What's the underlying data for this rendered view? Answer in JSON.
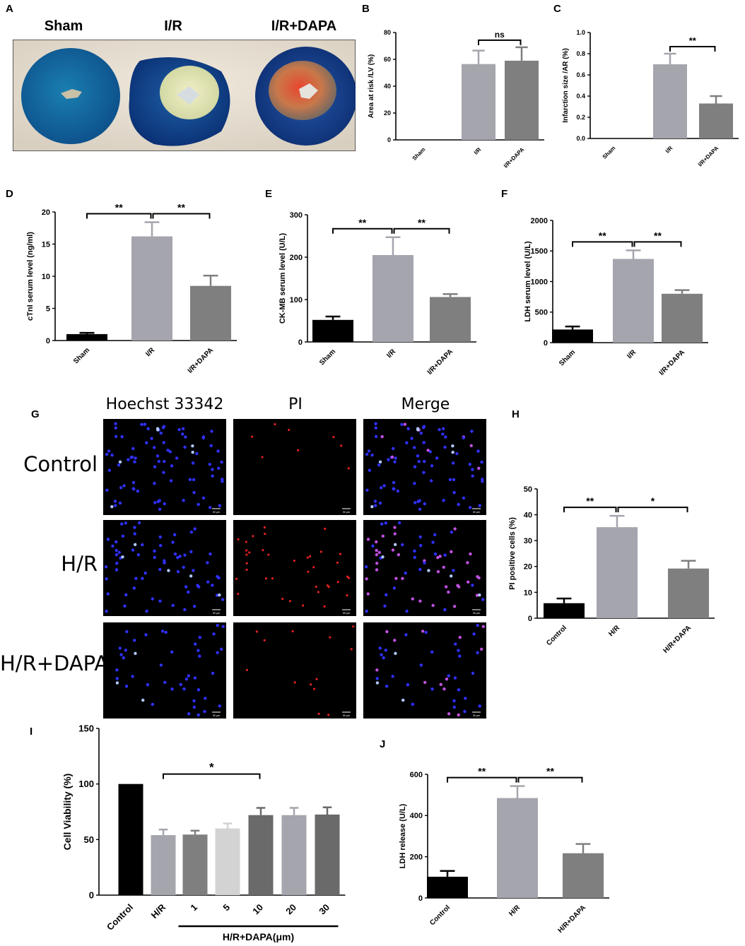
{
  "panel_letters": [
    "A",
    "B",
    "C",
    "D",
    "E",
    "F",
    "G",
    "H",
    "I",
    "J"
  ],
  "photo": {
    "labels": [
      "Sham",
      "I/R",
      "I/R+DAPA"
    ]
  },
  "micrographs": {
    "columns": [
      "Hoechst 33342",
      "PI",
      "Merge"
    ],
    "rows": [
      "Control",
      "H/R",
      "H/R+DAPA"
    ],
    "scale_bar": "50 μm"
  },
  "colors": {
    "black": "#000000",
    "light_gray": "#a5a5ae",
    "dark_gray": "#7f7f7f",
    "very_light_gray": "#d3d3d3",
    "mid_dark_gray": "#6a6a6a",
    "nuclei_blue": "#2a2aff",
    "pi_red": "#e02020"
  },
  "chart_data": [
    {
      "id": "B",
      "type": "bar",
      "categories": [
        "Sham",
        "I/R",
        "I/R+DAPA"
      ],
      "values": [
        0,
        56.5,
        59
      ],
      "errors": [
        0,
        10,
        10
      ],
      "colors": [
        "#000000",
        "#a5a5ae",
        "#7f7f7f"
      ],
      "ylabel": "Area at risk /LV (%)",
      "ylim": [
        0,
        80
      ],
      "yticks": [
        "0",
        "20",
        "40",
        "60",
        "80"
      ],
      "significance": [
        {
          "from": 1,
          "to": 2,
          "label": "ns"
        }
      ]
    },
    {
      "id": "C",
      "type": "bar",
      "categories": [
        "Sham",
        "I/R",
        "I/R+DAPA"
      ],
      "values": [
        0,
        0.7,
        0.33
      ],
      "errors": [
        0,
        0.1,
        0.07
      ],
      "colors": [
        "#000000",
        "#a5a5ae",
        "#7f7f7f"
      ],
      "ylabel": "Infarction size /AR (%)",
      "ylim": [
        0,
        1.0
      ],
      "yticks": [
        "0.0",
        "0.2",
        "0.4",
        "0.6",
        "0.8",
        "1.0"
      ],
      "significance": [
        {
          "from": 1,
          "to": 2,
          "label": "**"
        }
      ]
    },
    {
      "id": "D",
      "type": "bar",
      "categories": [
        "Sham",
        "I/R",
        "I/R+DAPA"
      ],
      "values": [
        1.0,
        16.2,
        8.5
      ],
      "errors": [
        0.2,
        2.2,
        1.6
      ],
      "colors": [
        "#000000",
        "#a5a5ae",
        "#7f7f7f"
      ],
      "ylabel": "cTnI serum level (ng/ml)",
      "ylim": [
        0,
        20
      ],
      "yticks": [
        "0",
        "5",
        "10",
        "15",
        "20"
      ],
      "significance": [
        {
          "from": 0,
          "to": 1,
          "label": "**"
        },
        {
          "from": 1,
          "to": 2,
          "label": "**"
        }
      ]
    },
    {
      "id": "E",
      "type": "bar",
      "categories": [
        "Sham",
        "I/R",
        "I/R+DAPA"
      ],
      "values": [
        52,
        205,
        106
      ],
      "errors": [
        8,
        42,
        7
      ],
      "colors": [
        "#000000",
        "#a5a5ae",
        "#7f7f7f"
      ],
      "ylabel": "CK-MB serum level (U/L)",
      "ylim": [
        0,
        300
      ],
      "yticks": [
        "0",
        "100",
        "200",
        "300"
      ],
      "significance": [
        {
          "from": 0,
          "to": 1,
          "label": "**"
        },
        {
          "from": 1,
          "to": 2,
          "label": "**"
        }
      ]
    },
    {
      "id": "F",
      "type": "bar",
      "categories": [
        "Sham",
        "I/R",
        "I/R+DAPA"
      ],
      "values": [
        215,
        1370,
        800
      ],
      "errors": [
        50,
        140,
        60
      ],
      "colors": [
        "#000000",
        "#a5a5ae",
        "#7f7f7f"
      ],
      "ylabel": "LDH serum level (U/L)",
      "ylim": [
        0,
        2000
      ],
      "yticks": [
        "0",
        "500",
        "1000",
        "1500",
        "2000"
      ],
      "significance": [
        {
          "from": 0,
          "to": 1,
          "label": "**"
        },
        {
          "from": 1,
          "to": 2,
          "label": "**"
        }
      ]
    },
    {
      "id": "H",
      "type": "bar",
      "categories": [
        "Control",
        "H/R",
        "H/R+DAPA"
      ],
      "values": [
        5.8,
        35.2,
        19.2
      ],
      "errors": [
        1.8,
        4.4,
        3.0
      ],
      "colors": [
        "#000000",
        "#a5a5ae",
        "#7f7f7f"
      ],
      "ylabel": "PI positive cells (%)",
      "ylim": [
        0,
        50
      ],
      "yticks": [
        "0",
        "10",
        "20",
        "30",
        "40",
        "50"
      ],
      "significance": [
        {
          "from": 0,
          "to": 1,
          "label": "**"
        },
        {
          "from": 1,
          "to": 2,
          "label": "*"
        }
      ]
    },
    {
      "id": "I",
      "type": "bar",
      "categories": [
        "Control",
        "H/R",
        "1",
        "5",
        "10",
        "20",
        "30"
      ],
      "values": [
        100,
        54,
        54.5,
        60,
        72,
        72,
        72.5
      ],
      "errors": [
        0,
        5,
        3.5,
        4.5,
        6.5,
        6.5,
        6.5
      ],
      "colors": [
        "#000000",
        "#a5a5ae",
        "#7f7f7f",
        "#d3d3d3",
        "#6a6a6a",
        "#a5a5ae",
        "#6a6a6a"
      ],
      "ylabel": "Cell Viability (%)",
      "ylim": [
        0,
        150
      ],
      "yticks": [
        "0",
        "50",
        "100",
        "150"
      ],
      "significance": [
        {
          "from": 1,
          "to": 4,
          "label": "*"
        }
      ],
      "group_label": "H/R+DAPA(μm)"
    },
    {
      "id": "J",
      "type": "bar",
      "categories": [
        "Control",
        "H/R",
        "H/R+DAPA"
      ],
      "values": [
        103,
        485,
        217
      ],
      "errors": [
        28,
        58,
        45
      ],
      "colors": [
        "#000000",
        "#a5a5ae",
        "#7f7f7f"
      ],
      "ylabel": "LDH release (U/L)",
      "ylim": [
        0,
        600
      ],
      "yticks": [
        "0",
        "200",
        "400",
        "600"
      ],
      "significance": [
        {
          "from": 0,
          "to": 1,
          "label": "**"
        },
        {
          "from": 1,
          "to": 2,
          "label": "**"
        }
      ]
    }
  ]
}
